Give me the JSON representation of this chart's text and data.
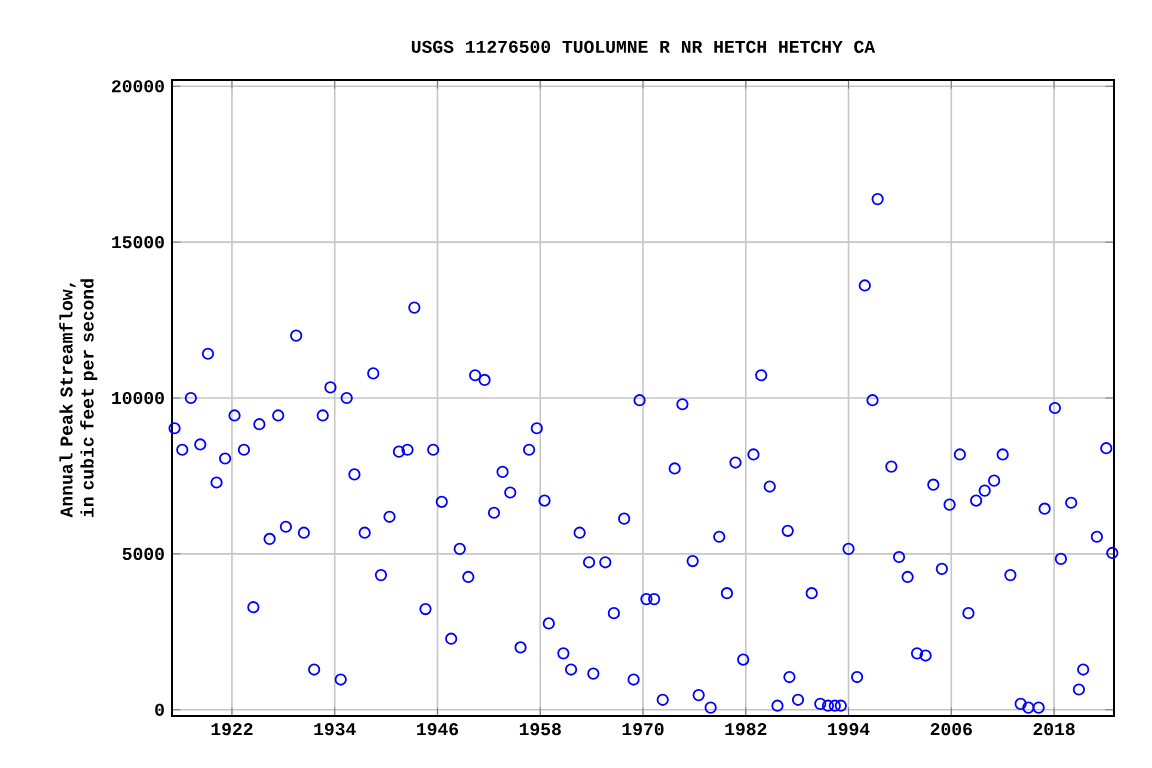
{
  "chart_data": {
    "type": "scatter",
    "title": "USGS 11276500 TUOLUMNE R NR HETCH HETCHY CA",
    "ylabel": "Annual Peak Streamflow, in cubic feet per second",
    "series": [
      {
        "color": "#0000ff",
        "x": [
          1915.3,
          1916.2,
          1917.2,
          1918.3,
          1919.2,
          1920.2,
          1921.2,
          1922.3,
          1923.4,
          1924.5,
          1925.2,
          1926.4,
          1927.4,
          1928.3,
          1929.5,
          1930.4,
          1931.6,
          1932.6,
          1933.5,
          1934.7,
          1935.4,
          1936.3,
          1937.5,
          1938.5,
          1939.4,
          1940.4,
          1941.5,
          1942.5,
          1943.3,
          1944.6,
          1945.5,
          1946.5,
          1947.6,
          1948.6,
          1949.6,
          1950.4,
          1951.5,
          1952.6,
          1953.6,
          1954.5,
          1955.7,
          1956.7,
          1957.6,
          1958.5,
          1959.0,
          1960.7,
          1961.6,
          1962.6,
          1963.7,
          1964.2,
          1965.6,
          1966.6,
          1967.8,
          1968.9,
          1969.6,
          1970.4,
          1971.3,
          1972.3,
          1973.7,
          1974.6,
          1975.8,
          1976.5,
          1977.9,
          1978.9,
          1979.8,
          1980.8,
          1981.7,
          1982.9,
          1983.8,
          1984.8,
          1985.7,
          1986.9,
          1987.1,
          1988.1,
          1989.7,
          1990.7,
          1991.6,
          1992.4,
          1993.1,
          1994.0,
          1995.0,
          1995.9,
          1996.8,
          1997.4,
          1999.0,
          1999.9,
          2000.9,
          2002.0,
          2003.0,
          2003.9,
          2004.9,
          2005.8,
          2007.0,
          2008.0,
          2008.9,
          2009.9,
          2011.0,
          2012.0,
          2012.9,
          2014.1,
          2015.0,
          2016.2,
          2016.9,
          2018.1,
          2018.8,
          2020.0,
          2020.9,
          2021.4,
          2023.0,
          2024.1,
          2024.8
        ],
        "values": [
          9030,
          8340,
          10000,
          8510,
          11420,
          7290,
          8060,
          9440,
          8340,
          3290,
          9160,
          5480,
          9440,
          5870,
          12000,
          5680,
          1290,
          9440,
          10340,
          970,
          10000,
          7550,
          5680,
          10790,
          4320,
          6190,
          8280,
          8340,
          12900,
          3230,
          8340,
          6670,
          2280,
          5160,
          4260,
          10730,
          10580,
          6320,
          7630,
          6970,
          2000,
          8340,
          9030,
          6710,
          2770,
          1810,
          1290,
          5680,
          4730,
          1160,
          4730,
          3100,
          6130,
          970,
          9930,
          3550,
          3550,
          320,
          7740,
          9800,
          4770,
          470,
          70,
          5550,
          3740,
          7930,
          1610,
          8190,
          10730,
          7160,
          130,
          5740,
          1050,
          320,
          3740,
          190,
          130,
          130,
          130,
          5160,
          1050,
          13610,
          9930,
          16380,
          7800,
          4900,
          4260,
          1810,
          1740,
          7220,
          4520,
          6580,
          8190,
          3100,
          6710,
          7030,
          7350,
          8190,
          4320,
          190,
          70,
          70,
          6450,
          9680,
          4840,
          6640,
          650,
          1290,
          5550,
          8390,
          5030
        ]
      }
    ],
    "xlim": [
      1915,
      2025
    ],
    "ylim": [
      -200,
      20200
    ],
    "xticks": [
      1922,
      1934,
      1946,
      1958,
      1970,
      1982,
      1994,
      2006,
      2018
    ],
    "yticks": [
      0,
      5000,
      10000,
      15000,
      20000
    ],
    "grid": true,
    "marker": "circle"
  }
}
